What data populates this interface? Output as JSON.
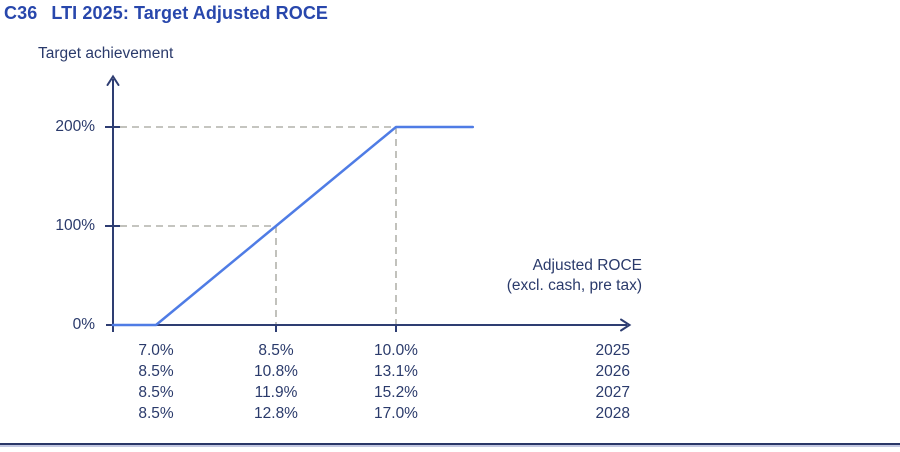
{
  "figure": {
    "code": "C36",
    "title": "LTI 2025: Target Adjusted ROCE"
  },
  "chart_data": {
    "type": "line",
    "title": "C36 LTI 2025: Target Adjusted ROCE",
    "y_axis": {
      "label": "Target achievement",
      "ticks": [
        {
          "value": 0,
          "label": "0%"
        },
        {
          "value": 100,
          "label": "100%"
        },
        {
          "value": 200,
          "label": "200%"
        }
      ],
      "range": [
        0,
        230
      ],
      "grid": false
    },
    "x_axis": {
      "label_line1": "Adjusted ROCE",
      "label_line2": "(excl. cash, pre tax)",
      "range": [
        6.46,
        11.3
      ]
    },
    "series": [
      {
        "name": "target-achievement-curve",
        "points": [
          [
            6.46,
            0
          ],
          [
            7.0,
            0
          ],
          [
            8.5,
            100
          ],
          [
            10.0,
            200
          ],
          [
            10.96,
            200
          ]
        ]
      }
    ],
    "key_points": [
      {
        "name": "threshold",
        "roce": 7.0,
        "achievement": 0
      },
      {
        "name": "target",
        "roce": 8.5,
        "achievement": 100
      },
      {
        "name": "cap",
        "roce": 10.0,
        "achievement": 200
      }
    ],
    "x_tick_table": {
      "years": [
        "2025",
        "2026",
        "2027",
        "2028"
      ],
      "values": [
        [
          "7.0%",
          "8.5%",
          "10.0%"
        ],
        [
          "8.5%",
          "10.8%",
          "13.1%"
        ],
        [
          "8.5%",
          "11.9%",
          "15.2%"
        ],
        [
          "8.5%",
          "12.8%",
          "17.0%"
        ]
      ]
    },
    "colors": {
      "title": "#2847ac",
      "text": "#2a3a6b",
      "axis": "#2e3d72",
      "line": "#4f7ce5",
      "dashes": "#b2b2ab"
    }
  }
}
